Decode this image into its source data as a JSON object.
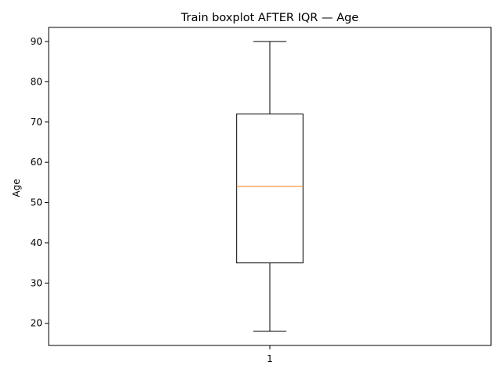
{
  "chart_data": {
    "type": "box",
    "title": "Train boxplot AFTER IQR — Age",
    "xlabel": "",
    "ylabel": "Age",
    "categories": [
      "1"
    ],
    "ylim": [
      14.5,
      93.5
    ],
    "yticks": [
      20,
      30,
      40,
      50,
      60,
      70,
      80,
      90
    ],
    "grid": false,
    "boxes": [
      {
        "category": "1",
        "whisker_low": 18,
        "q1": 35,
        "median": 54,
        "q3": 72,
        "whisker_high": 90
      }
    ],
    "colors": {
      "box": "#000000",
      "median": "#ff7f0e",
      "axes": "#000000"
    }
  }
}
